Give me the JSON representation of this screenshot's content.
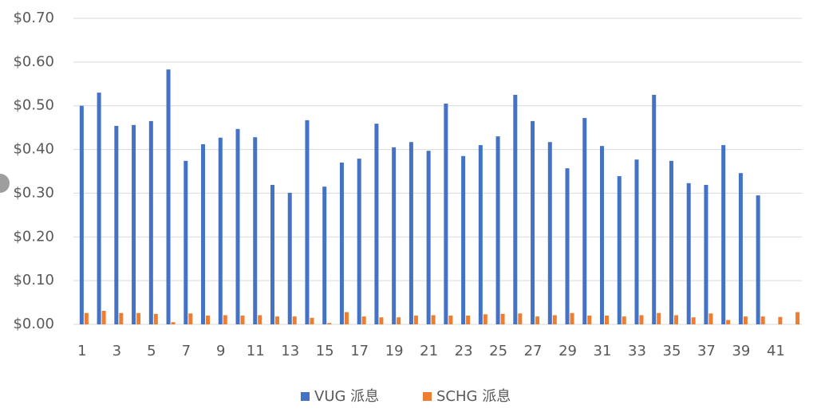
{
  "chart_data": {
    "type": "bar",
    "categories": [
      "1",
      null,
      "3",
      null,
      "5",
      null,
      "7",
      null,
      "9",
      null,
      "11",
      null,
      "13",
      null,
      "15",
      null,
      "17",
      null,
      "19",
      null,
      "21",
      null,
      "23",
      null,
      "25",
      null,
      "27",
      null,
      "29",
      null,
      "31",
      null,
      "33",
      null,
      "35",
      null,
      "37",
      null,
      "39",
      null,
      "41",
      null
    ],
    "series": [
      {
        "name": "VUG 派息",
        "color": "#4472c4",
        "values": [
          0.5,
          0.53,
          0.454,
          0.456,
          0.465,
          0.583,
          0.374,
          0.412,
          0.427,
          0.447,
          0.428,
          0.319,
          0.301,
          0.467,
          0.315,
          0.37,
          0.379,
          0.459,
          0.405,
          0.417,
          0.397,
          0.505,
          0.385,
          0.41,
          0.43,
          0.525,
          0.465,
          0.417,
          0.357,
          0.472,
          0.408,
          0.339,
          0.377,
          0.525,
          0.374,
          0.323,
          0.319,
          0.41,
          0.346,
          0.295,
          null,
          null
        ]
      },
      {
        "name": "SCHG 派息",
        "color": "#ed7d31",
        "values": [
          0.026,
          0.031,
          0.026,
          0.026,
          0.024,
          0.005,
          0.025,
          0.02,
          0.021,
          0.02,
          0.021,
          0.018,
          0.018,
          0.015,
          0.003,
          0.028,
          0.018,
          0.016,
          0.016,
          0.02,
          0.021,
          0.02,
          0.02,
          0.023,
          0.024,
          0.025,
          0.018,
          0.021,
          0.026,
          0.02,
          0.02,
          0.018,
          0.021,
          0.026,
          0.021,
          0.016,
          0.025,
          0.01,
          0.018,
          0.018,
          0.017,
          0.028
        ]
      }
    ],
    "ylim": [
      0,
      0.7
    ],
    "yticks": [
      {
        "value": 0,
        "label": "$0.00"
      },
      {
        "value": 0.1,
        "label": "$0.10"
      },
      {
        "value": 0.2,
        "label": "$0.20"
      },
      {
        "value": 0.3,
        "label": "$0.30"
      },
      {
        "value": 0.4,
        "label": "$0.40"
      },
      {
        "value": 0.5,
        "label": "$0.50"
      },
      {
        "value": 0.6,
        "label": "$0.60"
      },
      {
        "value": 0.7,
        "label": "$0.70"
      }
    ],
    "grid": true,
    "legend": "bottom"
  }
}
